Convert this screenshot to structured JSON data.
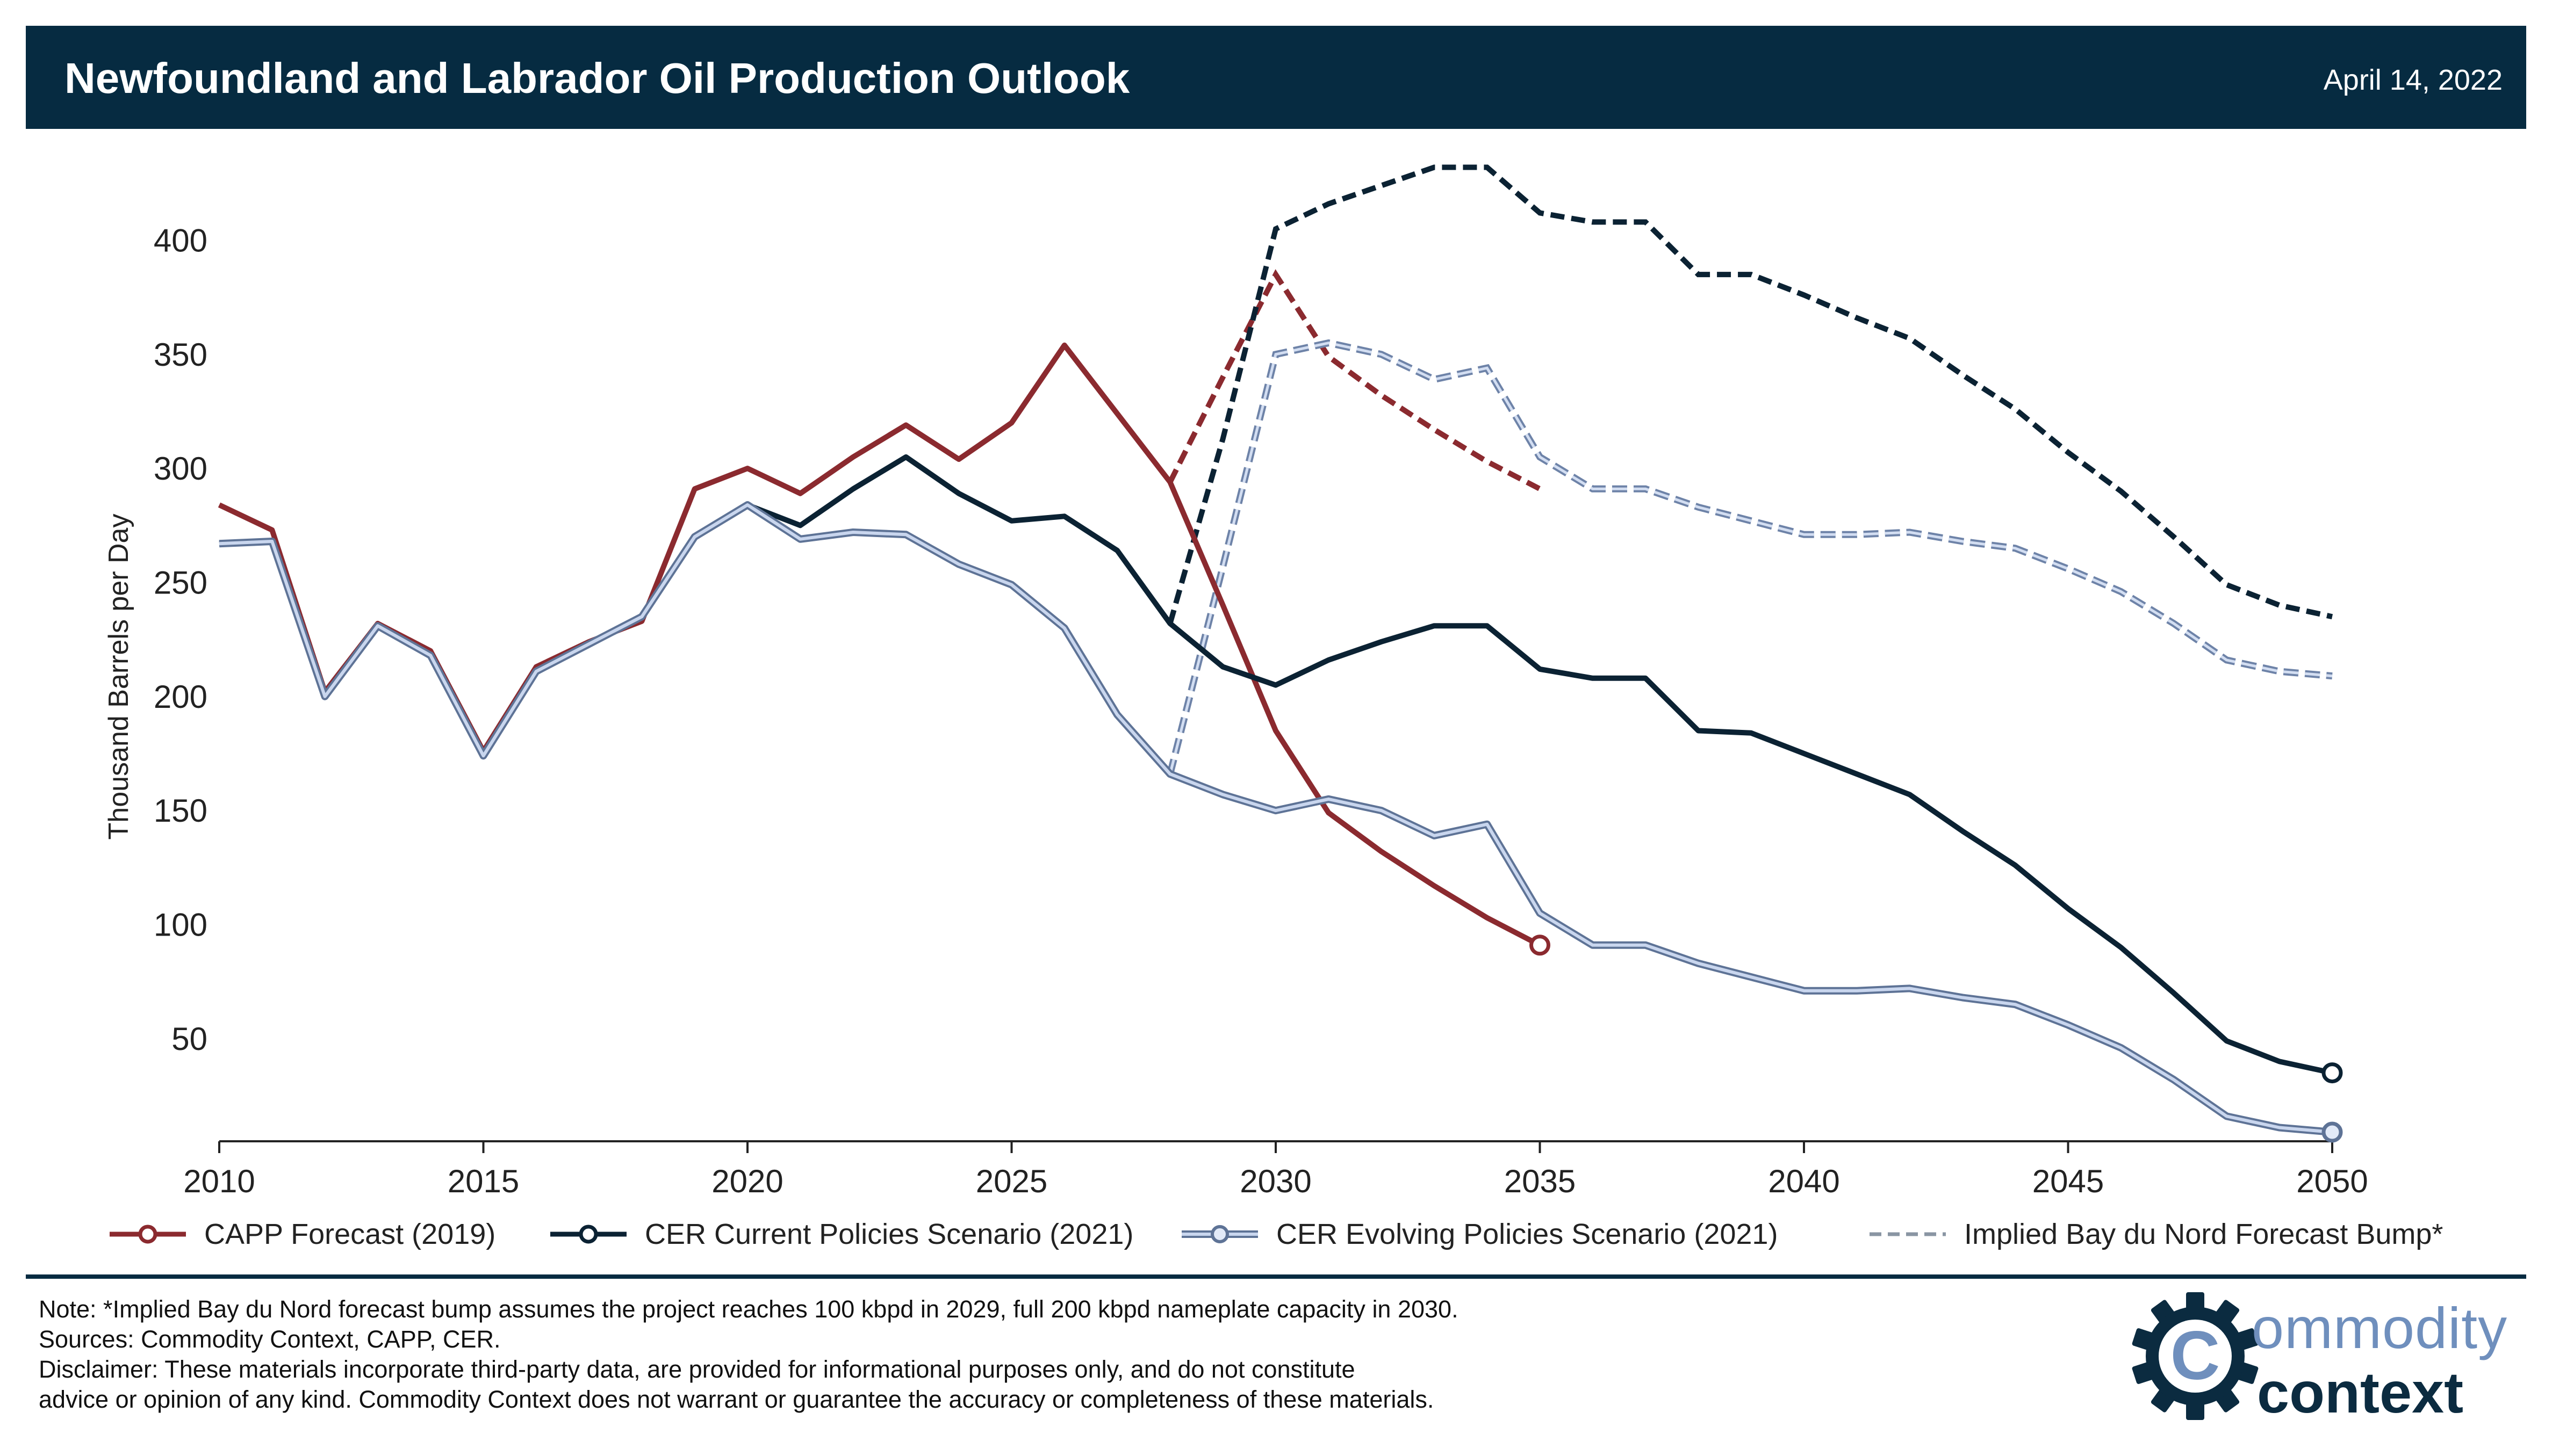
{
  "header": {
    "title": "Newfoundland and Labrador Oil Production Outlook",
    "date": "April 14, 2022"
  },
  "chart_data": {
    "type": "line",
    "ylabel": "Thousand Barrels per Day",
    "xlim": [
      2010,
      2050
    ],
    "ylim": [
      5,
      430
    ],
    "x_ticks": [
      2010,
      2015,
      2020,
      2025,
      2030,
      2035,
      2040,
      2045,
      2050
    ],
    "y_ticks": [
      50,
      100,
      150,
      200,
      250,
      300,
      350,
      400
    ],
    "grid": false,
    "legend_position": "bottom",
    "series": [
      {
        "name": "CAPP Forecast (2019)",
        "color": "#8b2a2f",
        "style": "solid",
        "end_marker": true,
        "x": [
          2010,
          2011,
          2012,
          2013,
          2014,
          2015,
          2016,
          2017,
          2018,
          2019,
          2020,
          2021,
          2022,
          2023,
          2024,
          2025,
          2026,
          2027,
          2028,
          2029,
          2030,
          2031,
          2032,
          2033,
          2034,
          2035
        ],
        "y": [
          284,
          273,
          202,
          232,
          220,
          176,
          213,
          224,
          233,
          291,
          300,
          289,
          305,
          319,
          304,
          320,
          354,
          324,
          294,
          240,
          185,
          149,
          132,
          117,
          103,
          91
        ]
      },
      {
        "name": "CER Current Policies Scenario (2021)",
        "color": "#0b2233",
        "style": "solid",
        "end_marker": true,
        "x": [
          2010,
          2011,
          2012,
          2013,
          2014,
          2015,
          2016,
          2017,
          2018,
          2019,
          2020,
          2021,
          2022,
          2023,
          2024,
          2025,
          2026,
          2027,
          2028,
          2029,
          2030,
          2031,
          2032,
          2033,
          2034,
          2035,
          2036,
          2037,
          2038,
          2039,
          2040,
          2041,
          2042,
          2043,
          2044,
          2045,
          2046,
          2047,
          2048,
          2049,
          2050
        ],
        "y": [
          267,
          268,
          200,
          231,
          218,
          174,
          211,
          223,
          235,
          270,
          284,
          275,
          291,
          305,
          289,
          277,
          279,
          264,
          232,
          213,
          205,
          216,
          224,
          231,
          231,
          212,
          208,
          208,
          185,
          184,
          175,
          166,
          157,
          141,
          126,
          107,
          90,
          70,
          49,
          40,
          35
        ]
      },
      {
        "name": "CER Evolving Policies Scenario (2021)",
        "color": "#9bb0d3",
        "style": "double",
        "end_marker": true,
        "x": [
          2010,
          2011,
          2012,
          2013,
          2014,
          2015,
          2016,
          2017,
          2018,
          2019,
          2020,
          2021,
          2022,
          2023,
          2024,
          2025,
          2026,
          2027,
          2028,
          2029,
          2030,
          2031,
          2032,
          2033,
          2034,
          2035,
          2036,
          2037,
          2038,
          2039,
          2040,
          2041,
          2042,
          2043,
          2044,
          2045,
          2046,
          2047,
          2048,
          2049,
          2050
        ],
        "y": [
          267,
          268,
          200,
          231,
          218,
          174,
          211,
          223,
          235,
          270,
          284,
          269,
          272,
          271,
          258,
          249,
          230,
          192,
          166,
          157,
          150,
          155,
          150,
          139,
          144,
          105,
          91,
          91,
          83,
          77,
          71,
          71,
          72,
          68,
          65,
          56,
          46,
          32,
          16,
          11,
          9
        ]
      },
      {
        "name": "Implied Bay du Nord Forecast Bump*",
        "color": "#8a95a3",
        "style": "dashed",
        "legend_only": true,
        "x": [],
        "y": []
      }
    ],
    "bay_du_nord_bumps": [
      {
        "base": "CAPP Forecast (2019)",
        "color": "#8b2a2f",
        "style": "dashed",
        "x": [
          2028,
          2029,
          2030,
          2031,
          2032,
          2033,
          2034,
          2035
        ],
        "y": [
          294,
          340,
          385,
          349,
          332,
          317,
          303,
          291
        ]
      },
      {
        "base": "CER Current Policies Scenario (2021)",
        "color": "#0b2233",
        "style": "dashed",
        "x": [
          2028,
          2029,
          2030,
          2031,
          2032,
          2033,
          2034,
          2035,
          2036,
          2037,
          2038,
          2039,
          2040,
          2041,
          2042,
          2043,
          2044,
          2045,
          2046,
          2047,
          2048,
          2049,
          2050
        ],
        "y": [
          232,
          313,
          405,
          416,
          424,
          432,
          432,
          412,
          408,
          408,
          385,
          385,
          376,
          366,
          357,
          341,
          326,
          307,
          290,
          270,
          249,
          240,
          235
        ]
      },
      {
        "base": "CER Evolving Policies Scenario (2021)",
        "color": "#9bb0d3",
        "style": "dashed-double",
        "x": [
          2028,
          2029,
          2030,
          2031,
          2032,
          2033,
          2034,
          2035,
          2036,
          2037,
          2038,
          2039,
          2040,
          2041,
          2042,
          2043,
          2044,
          2045,
          2046,
          2047,
          2048,
          2049,
          2050
        ],
        "y": [
          166,
          257,
          350,
          355,
          350,
          339,
          344,
          305,
          291,
          291,
          283,
          277,
          271,
          271,
          272,
          268,
          265,
          256,
          246,
          232,
          216,
          211,
          209
        ]
      }
    ]
  },
  "legend": [
    "CAPP Forecast (2019)",
    "CER Current Policies Scenario (2021)",
    "CER Evolving Policies Scenario (2021)",
    "Implied Bay du Nord Forecast Bump*"
  ],
  "footer": {
    "note": "Note: *Implied Bay du Nord forecast bump assumes the project reaches 100 kbpd in 2029, full 200 kbpd nameplate capacity in 2030.",
    "sources": "Sources: Commodity Context, CAPP, CER.",
    "disclaimer_1": "Disclaimer: These materials incorporate third-party data, are provided for informational purposes only, and do not constitute",
    "disclaimer_2": "advice or opinion of any kind. Commodity Context does not warrant or guarantee the accuracy or completeness of these materials."
  },
  "logo": {
    "line1": "ommodity",
    "line2": "context",
    "mark_letter": "C",
    "icon": "gear-icon",
    "color_light": "#6f8fbd",
    "color_dark": "#0b2b40"
  }
}
